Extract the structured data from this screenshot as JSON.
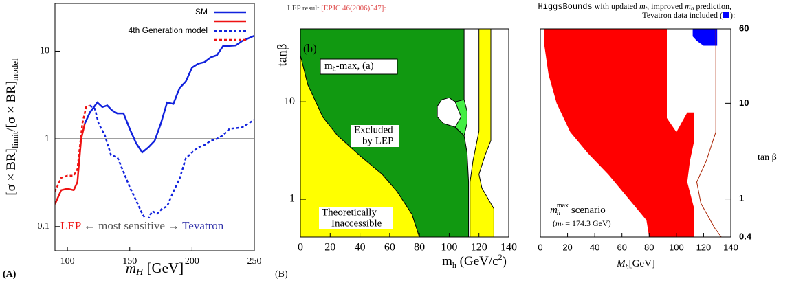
{
  "chart_data": [
    {
      "type": "line",
      "panel_label": "(A)",
      "ylabel": [
        "[σ × BR]",
        "limit",
        "/[σ × BR]",
        "model"
      ],
      "xlabel": [
        "m",
        "H",
        " [GeV]"
      ],
      "xlim": [
        90,
        250
      ],
      "ylim": [
        0.053,
        35
      ],
      "log_y": true,
      "xticks": [
        100,
        150,
        200,
        250
      ],
      "yticks": [
        0.1,
        1,
        10
      ],
      "hline": 1,
      "series": [
        {
          "color": "#ee1111",
          "dash": false,
          "x": [
            90,
            95,
            100,
            105,
            108,
            111,
            114
          ],
          "values": [
            0.18,
            0.26,
            0.27,
            0.26,
            0.32,
            1.0,
            1.5
          ]
        },
        {
          "color": "#1122dd",
          "dash": false,
          "x": [
            114,
            118,
            124,
            128,
            132,
            136,
            140,
            145,
            150,
            155,
            160,
            165,
            170,
            175,
            180,
            185,
            190,
            195,
            200,
            205,
            210,
            215,
            220,
            225,
            230,
            235,
            240,
            250
          ],
          "values": [
            1.5,
            2.0,
            2.6,
            2.3,
            2.4,
            2.1,
            1.95,
            1.95,
            1.3,
            0.9,
            0.7,
            0.8,
            0.95,
            1.5,
            2.6,
            2.5,
            3.8,
            4.5,
            6.5,
            7.2,
            7.5,
            8.5,
            9,
            11.5,
            11.5,
            11.6,
            13,
            15
          ]
        },
        {
          "color": "#ee1111",
          "dash": true,
          "x": [
            90,
            95,
            100,
            105,
            108,
            112,
            115,
            118
          ],
          "values": [
            0.25,
            0.36,
            0.38,
            0.38,
            0.45,
            1.5,
            2.3,
            2.4
          ]
        },
        {
          "color": "#1122dd",
          "dash": true,
          "x": [
            118,
            122,
            125,
            130,
            135,
            140,
            145,
            150,
            155,
            160,
            164,
            168,
            172,
            176,
            180,
            185,
            190,
            195,
            200,
            205,
            210,
            215,
            220,
            225,
            230,
            240,
            250
          ],
          "values": [
            2.4,
            2.2,
            1.5,
            1.1,
            0.65,
            0.62,
            0.42,
            0.28,
            0.2,
            0.14,
            0.115,
            0.15,
            0.14,
            0.16,
            0.17,
            0.25,
            0.35,
            0.6,
            0.7,
            0.8,
            0.85,
            0.95,
            1.0,
            1.1,
            1.3,
            1.35,
            1.65
          ]
        }
      ],
      "legend": [
        {
          "label": "SM",
          "colors": [
            "#1122dd",
            "#ee1111"
          ],
          "dash": false
        },
        {
          "label": "4th Generation model",
          "colors": [
            "#1122dd",
            "#ee1111"
          ],
          "dash": true
        }
      ],
      "annotation": [
        "LEP",
        " ← most sensitive → ",
        "Tevatron"
      ]
    },
    {
      "type": "region",
      "panel_label": "(B)",
      "title": [
        "LEP result ",
        "[EPJC 46(2006)547]:"
      ],
      "ylabel": "tanβ",
      "xlabel": [
        "m",
        "h",
        " (GeV/c",
        "2",
        ")"
      ],
      "xlim": [
        0,
        140
      ],
      "ylim": [
        0.41,
        56
      ],
      "log_y": true,
      "xticks": [
        0,
        20,
        40,
        60,
        80,
        100,
        120,
        140
      ],
      "yticks": [
        1,
        10
      ],
      "regions": [
        {
          "color": "#ffff00",
          "x": [
            0,
            0,
            5,
            15,
            25,
            40,
            55,
            65,
            75,
            80
          ],
          "y": [
            0.41,
            30,
            15,
            7,
            4.5,
            2.8,
            1.8,
            1.2,
            0.7,
            0.41
          ]
        },
        {
          "color": "#119911",
          "x": [
            0,
            0,
            5,
            15,
            25,
            40,
            55,
            65,
            75,
            80,
            113,
            113,
            112,
            110,
            104,
            96,
            92,
            92,
            95,
            100,
            104,
            107,
            108,
            110,
            110
          ],
          "y": [
            56,
            30,
            15,
            7,
            4.5,
            2.8,
            1.8,
            1.2,
            0.7,
            0.41,
            0.41,
            1.5,
            3,
            4.5,
            5.5,
            6,
            7,
            9,
            10.5,
            11,
            10,
            8,
            7,
            7,
            56
          ]
        },
        {
          "color": "#44ee44",
          "x": [
            104,
            110,
            112,
            112,
            110,
            104,
            108
          ],
          "y": [
            10,
            10.5,
            8,
            6,
            4.5,
            5.5,
            7
          ]
        },
        {
          "color": "#ffff00",
          "x": [
            114,
            130,
            130,
            122,
            120,
            124,
            128,
            128,
            120,
            120,
            116,
            114
          ],
          "y": [
            0.41,
            0.41,
            0.8,
            1.3,
            1.8,
            2.8,
            4,
            56,
            56,
            5,
            2.5,
            1.5
          ]
        }
      ],
      "annotations": [
        "(b)",
        "m",
        "h",
        "-max, (a)",
        "Excluded",
        "by LEP",
        "Theoretically",
        "Inaccessible"
      ]
    },
    {
      "type": "region",
      "title": [
        "HiggsBounds",
        " with updated ",
        "m",
        "t",
        ", improved ",
        "m",
        "h",
        " prediction,",
        "Tevatron data included (",
        "):"
      ],
      "ylabel": "tan β",
      "xlabel": [
        "M",
        "h",
        "[GeV]"
      ],
      "xlim": [
        0,
        140
      ],
      "ylim": [
        0.4,
        60
      ],
      "log_y": true,
      "y_axis_side": "right",
      "xticks": [
        0,
        20,
        40,
        60,
        80,
        100,
        120,
        140
      ],
      "yticks": [
        0.4,
        1,
        10,
        60
      ],
      "regions": [
        {
          "color": "#ff0000",
          "x": [
            3,
            93,
            93,
            100,
            108,
            113,
            113,
            110,
            108,
            113,
            113,
            80,
            78,
            65,
            50,
            35,
            22,
            12,
            6,
            3
          ],
          "y": [
            60,
            60,
            7,
            5,
            8,
            8,
            4,
            2.5,
            1.5,
            0.8,
            0.4,
            0.4,
            0.6,
            1,
            1.8,
            3,
            5,
            10,
            20,
            40
          ]
        },
        {
          "color": "#0000ff",
          "x": [
            112,
            130,
            130,
            120,
            115,
            112
          ],
          "y": [
            60,
            60,
            40,
            40,
            45,
            50
          ]
        }
      ],
      "lines": [
        {
          "color": "#aa2200",
          "x": [
            129,
            129,
            122,
            115,
            118,
            128,
            133
          ],
          "values": [
            60,
            5,
            2.5,
            1.5,
            0.9,
            0.5,
            0.4
          ]
        }
      ],
      "annotations": [
        "m",
        "h",
        "max",
        " scenario",
        "(",
        "m",
        "t",
        " = 174.3 GeV)"
      ]
    }
  ]
}
